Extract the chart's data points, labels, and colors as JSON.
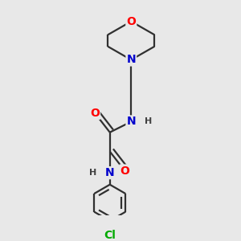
{
  "background_color": "#e8e8e8",
  "bond_color": "#303030",
  "atom_colors": {
    "O": "#ff0000",
    "N": "#0000cc",
    "Cl": "#00aa00",
    "H": "#404040",
    "C": "#303030"
  },
  "bond_width": 1.6,
  "figsize": [
    3.0,
    3.0
  ],
  "dpi": 100
}
